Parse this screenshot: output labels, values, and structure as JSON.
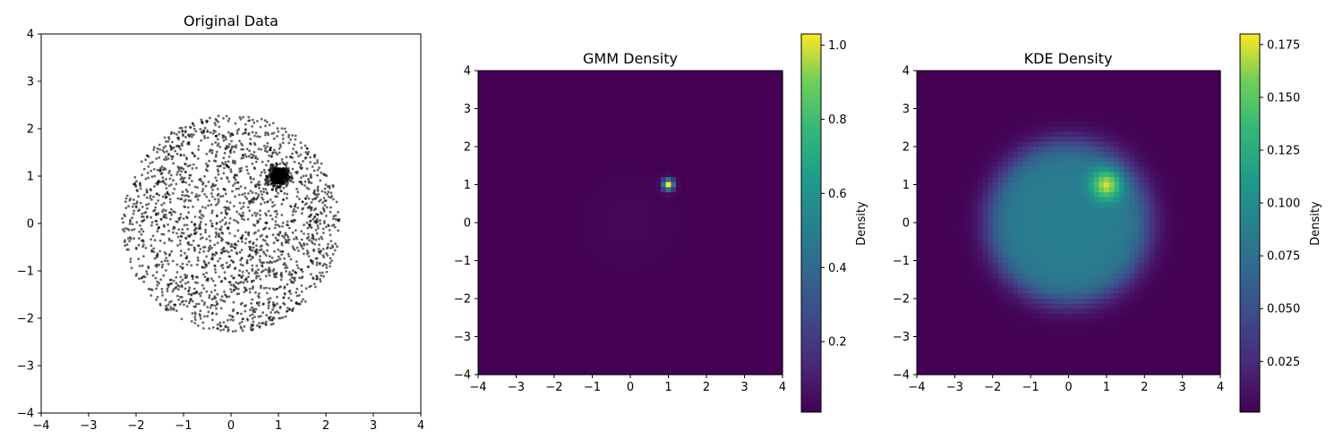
{
  "chart_data": [
    {
      "type": "scatter",
      "title": "Original Data",
      "xlabel": "",
      "ylabel": "",
      "xlim": [
        -4,
        4
      ],
      "ylim": [
        -4,
        4
      ],
      "xticks": [
        -4,
        -3,
        -2,
        -1,
        0,
        1,
        2,
        3,
        4
      ],
      "yticks": [
        -4,
        -3,
        -2,
        -1,
        0,
        1,
        2,
        3,
        4
      ],
      "point_color": "#000000",
      "point_alpha": 0.6,
      "grid": false,
      "clusters": [
        {
          "description": "diffuse disk",
          "center": [
            0,
            0
          ],
          "radius": 2.3,
          "approx_points": 2000
        },
        {
          "description": "dense blob",
          "center": [
            1,
            1
          ],
          "std": 0.1,
          "approx_points": 500
        }
      ]
    },
    {
      "type": "heatmap",
      "title": "GMM Density",
      "xlim": [
        -4,
        4
      ],
      "ylim": [
        -4,
        4
      ],
      "xticks": [
        -4,
        -3,
        -2,
        -1,
        0,
        1,
        2,
        3,
        4
      ],
      "yticks": [
        -4,
        -3,
        -2,
        -1,
        0,
        1,
        2,
        3,
        4
      ],
      "colormap": "viridis",
      "colorbar": {
        "label": "Density",
        "range": [
          0.01,
          1.03
        ],
        "ticks": [
          0.2,
          0.4,
          0.6,
          0.8,
          1.0
        ],
        "tick_labels": [
          "0.2",
          "0.4",
          "0.6",
          "0.8",
          "1.0"
        ]
      },
      "components": [
        {
          "mean": [
            0,
            0
          ],
          "std": 1.15,
          "weight": 0.8
        },
        {
          "mean": [
            1,
            1
          ],
          "std": 0.1,
          "weight": 0.2
        }
      ]
    },
    {
      "type": "heatmap",
      "title": "KDE Density",
      "xlim": [
        -4,
        4
      ],
      "ylim": [
        -4,
        4
      ],
      "xticks": [
        -4,
        -3,
        -2,
        -1,
        0,
        1,
        2,
        3,
        4
      ],
      "yticks": [
        -4,
        -3,
        -2,
        -1,
        0,
        1,
        2,
        3,
        4
      ],
      "colormap": "viridis",
      "colorbar": {
        "label": "Density",
        "range": [
          0.001,
          0.18
        ],
        "ticks": [
          0.025,
          0.05,
          0.075,
          0.1,
          0.125,
          0.15,
          0.175
        ],
        "tick_labels": [
          "0.025",
          "0.050",
          "0.075",
          "0.100",
          "0.125",
          "0.150",
          "0.175"
        ]
      },
      "features": [
        {
          "description": "disk plateau",
          "center": [
            0,
            0
          ],
          "radius": 2.1,
          "level": 0.085
        },
        {
          "description": "peak",
          "center": [
            1,
            1
          ],
          "level": 0.175
        }
      ]
    }
  ]
}
